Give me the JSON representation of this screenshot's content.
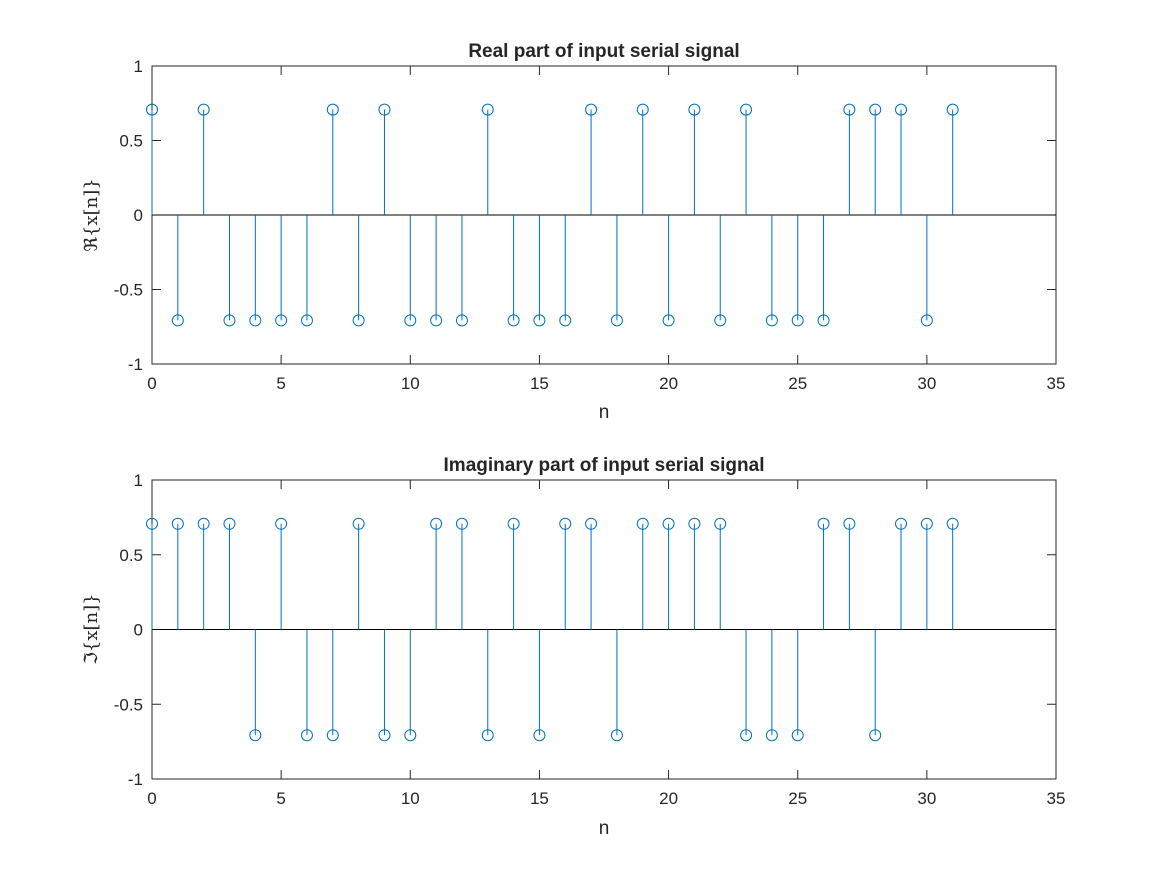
{
  "chart_data": [
    {
      "type": "stem",
      "title": "Real part of input serial signal",
      "xlabel": "n",
      "ylabel": "ℜ{x[n]}",
      "xlim": [
        0,
        35
      ],
      "ylim": [
        -1,
        1
      ],
      "xticks": [
        "0",
        "5",
        "10",
        "15",
        "20",
        "25",
        "30",
        "35"
      ],
      "yticks": [
        "-1",
        "-0.5",
        "0",
        "0.5",
        "1"
      ],
      "color": "#0072bd",
      "x": [
        0,
        1,
        2,
        3,
        4,
        5,
        6,
        7,
        8,
        9,
        10,
        11,
        12,
        13,
        14,
        15,
        16,
        17,
        18,
        19,
        20,
        21,
        22,
        23,
        24,
        25,
        26,
        27,
        28,
        29,
        30,
        31
      ],
      "values": [
        0.7071,
        -0.7071,
        0.7071,
        -0.7071,
        -0.7071,
        -0.7071,
        -0.7071,
        0.7071,
        -0.7071,
        0.7071,
        -0.7071,
        -0.7071,
        -0.7071,
        0.7071,
        -0.7071,
        -0.7071,
        -0.7071,
        0.7071,
        -0.7071,
        0.7071,
        -0.7071,
        0.7071,
        -0.7071,
        0.7071,
        -0.7071,
        -0.7071,
        -0.7071,
        0.7071,
        0.7071,
        0.7071,
        -0.7071,
        0.7071
      ]
    },
    {
      "type": "stem",
      "title": "Imaginary part of input serial signal",
      "xlabel": "n",
      "ylabel": "ℑ{x[n]}",
      "xlim": [
        0,
        35
      ],
      "ylim": [
        -1,
        1
      ],
      "xticks": [
        "0",
        "5",
        "10",
        "15",
        "20",
        "25",
        "30",
        "35"
      ],
      "yticks": [
        "-1",
        "-0.5",
        "0",
        "0.5",
        "1"
      ],
      "color": "#0072bd",
      "x": [
        0,
        1,
        2,
        3,
        4,
        5,
        6,
        7,
        8,
        9,
        10,
        11,
        12,
        13,
        14,
        15,
        16,
        17,
        18,
        19,
        20,
        21,
        22,
        23,
        24,
        25,
        26,
        27,
        28,
        29,
        30,
        31
      ],
      "values": [
        0.7071,
        0.7071,
        0.7071,
        0.7071,
        -0.7071,
        0.7071,
        -0.7071,
        -0.7071,
        0.7071,
        -0.7071,
        -0.7071,
        0.7071,
        0.7071,
        -0.7071,
        0.7071,
        -0.7071,
        0.7071,
        0.7071,
        -0.7071,
        0.7071,
        0.7071,
        0.7071,
        0.7071,
        -0.7071,
        -0.7071,
        -0.7071,
        0.7071,
        0.7071,
        -0.7071,
        0.7071,
        0.7071,
        0.7071
      ]
    }
  ]
}
